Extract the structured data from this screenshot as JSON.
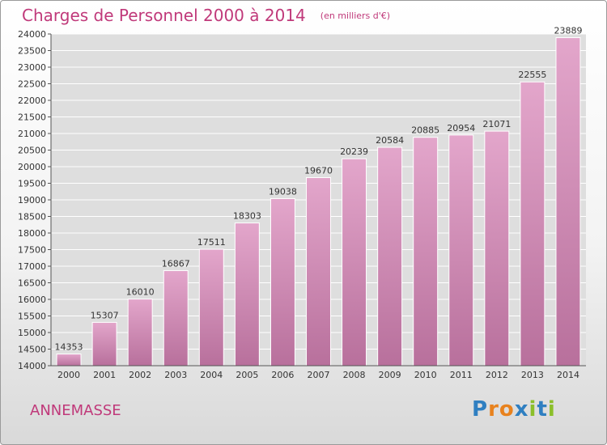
{
  "title": "Charges de Personnel 2000 à 2014",
  "subtitle": "(en milliers d'€)",
  "city": "ANNEMASSE",
  "brand": {
    "text": "Proxiti",
    "letters": [
      "P",
      "r",
      "o",
      "x",
      "i",
      "t",
      "i"
    ],
    "colors": [
      "#2f7fc1",
      "#e8821e",
      "#e8821e",
      "#2f7fc1",
      "#8bbf2a",
      "#2f7fc1",
      "#8bbf2a"
    ]
  },
  "colors": {
    "accent": "#c0397a",
    "bar_top": "#e3a6cb",
    "bar_bottom": "#b8709c"
  },
  "chart_data": {
    "type": "bar",
    "title": "Charges de Personnel 2000 à 2014",
    "subtitle": "(en milliers d'€)",
    "categories": [
      "2000",
      "2001",
      "2002",
      "2003",
      "2004",
      "2005",
      "2006",
      "2007",
      "2008",
      "2009",
      "2010",
      "2011",
      "2012",
      "2013",
      "2014"
    ],
    "values": [
      14353,
      15307,
      16010,
      16867,
      17511,
      18303,
      19038,
      19670,
      20239,
      20584,
      20885,
      20954,
      21071,
      22555,
      23889
    ],
    "ylim": [
      14000,
      24000
    ],
    "yticks": [
      14000,
      14500,
      15000,
      15500,
      16000,
      16500,
      17000,
      17500,
      18000,
      18500,
      19000,
      19500,
      20000,
      20500,
      21000,
      21500,
      22000,
      22500,
      23000,
      23500,
      24000
    ],
    "grid": true,
    "legend": "none"
  }
}
